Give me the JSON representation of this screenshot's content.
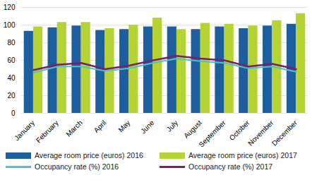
{
  "chart_data": {
    "type": "bar",
    "categories": [
      "January",
      "February",
      "March",
      "April",
      "May",
      "June",
      "July",
      "August",
      "September",
      "October",
      "November",
      "December"
    ],
    "series": [
      {
        "name": "Average room price (euros) 2016",
        "type": "bar",
        "color": "#1d5e9e",
        "values": [
          93,
          97,
          99,
          94,
          95,
          98,
          98,
          95,
          98,
          96,
          99,
          101
        ]
      },
      {
        "name": "Average room price (euros) 2017",
        "type": "bar",
        "color": "#b5d334",
        "values": [
          98,
          103,
          103,
          96,
          100,
          108,
          95,
          102,
          101,
          99,
          105,
          113
        ]
      },
      {
        "name": "Occupancy rate (%) 2016",
        "type": "line",
        "color": "#4cc3c6",
        "values": [
          46,
          53,
          53,
          48,
          51,
          57,
          62,
          59,
          57,
          51,
          53,
          47
        ]
      },
      {
        "name": "Occupancy rate (%) 2017",
        "type": "line",
        "color": "#7a1f6b",
        "values": [
          49,
          55,
          57,
          50,
          54,
          60,
          65,
          62,
          60,
          53,
          56,
          50
        ]
      }
    ],
    "ylim": [
      0,
      120
    ],
    "yticks": [
      0,
      20,
      40,
      60,
      80,
      100,
      120
    ],
    "grid": true,
    "legend": "bottom"
  }
}
